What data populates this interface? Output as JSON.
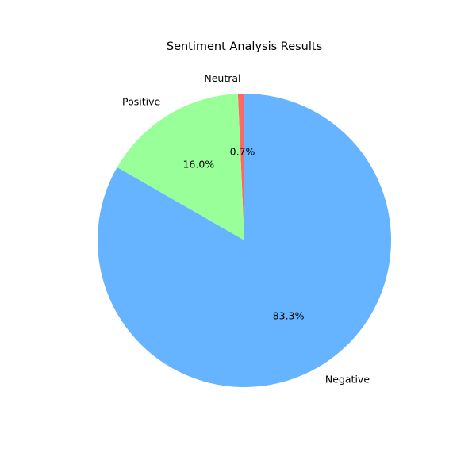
{
  "chart_data": {
    "type": "pie",
    "title": "Sentiment Analysis Results",
    "slices": [
      {
        "label": "Neutral",
        "value": 0.7,
        "pct_label": "0.7%",
        "color": "#ff6666"
      },
      {
        "label": "Positive",
        "value": 16.0,
        "pct_label": "16.0%",
        "color": "#99ff99"
      },
      {
        "label": "Negative",
        "value": 83.3,
        "pct_label": "83.3%",
        "color": "#66b3ff"
      }
    ],
    "start_angle_deg": 90,
    "direction": "counterclockwise",
    "legend": "none"
  }
}
